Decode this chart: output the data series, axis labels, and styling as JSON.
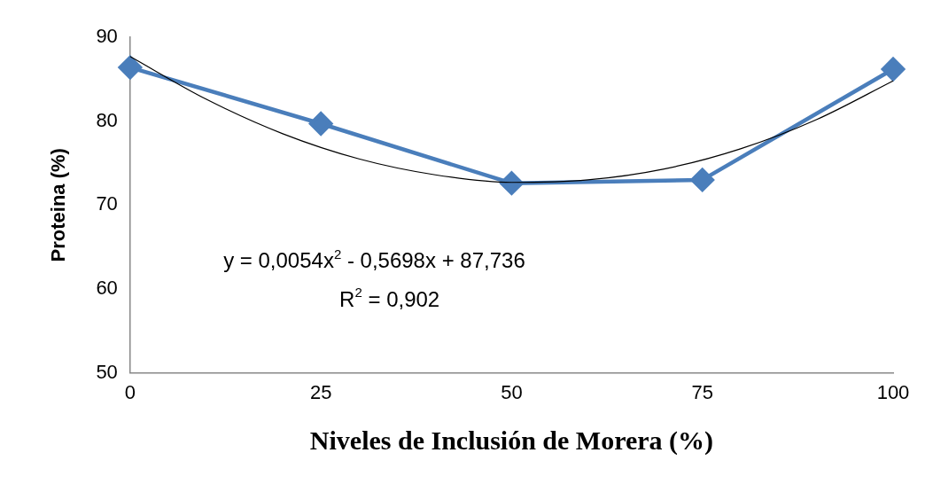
{
  "chart_data": {
    "type": "line",
    "xlabel": "Niveles de Inclusión de Morera (%)",
    "ylabel": "Proteina (%)",
    "xlim": [
      0,
      100
    ],
    "xticks": [
      0,
      25,
      50,
      75,
      100
    ],
    "ylim": [
      50,
      90
    ],
    "yticks": [
      50,
      60,
      70,
      80,
      90
    ],
    "grid": false,
    "legend": false,
    "marker": "diamond",
    "line_style": "solid",
    "series": [
      {
        "color": "#4a7ebb",
        "x": [
          0,
          25,
          50,
          75,
          100
        ],
        "values": [
          86.4,
          79.7,
          72.6,
          73.0,
          86.2
        ]
      },
      {
        "color": "#000000",
        "marker": "none",
        "x": [
          0,
          10,
          20,
          30,
          40,
          50,
          60,
          70,
          80,
          90,
          100
        ],
        "values": [
          87.7,
          82.6,
          78.5,
          75.5,
          73.6,
          72.7,
          73.0,
          74.3,
          76.7,
          80.2,
          84.8
        ]
      }
    ],
    "annotations": [
      "y = 0,0054x$^{2}$ - 0,5698x + 87,736",
      "R$^{2}$ = 0,902"
    ]
  }
}
